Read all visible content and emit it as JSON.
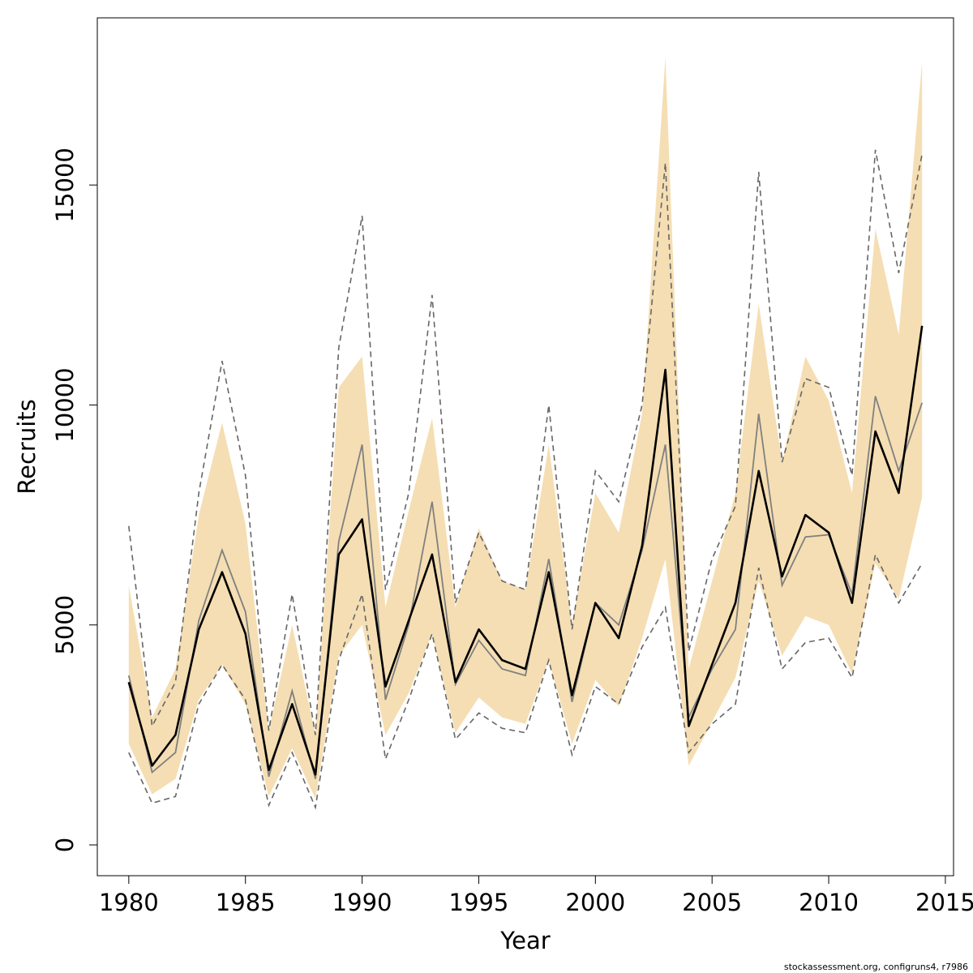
{
  "footer": "stockassessment.org, configruns4, r7986",
  "chart_data": {
    "type": "line",
    "title": "",
    "xlabel": "Year",
    "ylabel": "Recruits",
    "xlim": [
      1978.65,
      2015.35
    ],
    "ylim": [
      -700,
      18800
    ],
    "x_ticks": [
      1980,
      1985,
      1990,
      1995,
      2000,
      2005,
      2010,
      2015
    ],
    "y_ticks": [
      0,
      5000,
      10000,
      15000
    ],
    "grid": false,
    "legend": "none",
    "colors": {
      "band": "#f5deb3",
      "estimate": "#000000",
      "alt_estimate": "#808080",
      "alt_bounds": "#666666"
    },
    "x": [
      1980,
      1981,
      1982,
      1983,
      1984,
      1985,
      1986,
      1987,
      1988,
      1989,
      1990,
      1991,
      1992,
      1993,
      1994,
      1995,
      1996,
      1997,
      1998,
      1999,
      2000,
      2001,
      2002,
      2003,
      2004,
      2005,
      2006,
      2007,
      2008,
      2009,
      2010,
      2011,
      2012,
      2013,
      2014
    ],
    "series": [
      {
        "role": "estimate",
        "values": [
          3700,
          1800,
          2500,
          4900,
          6200,
          4800,
          1700,
          3200,
          1600,
          6600,
          7400,
          3600,
          5100,
          6600,
          3700,
          4900,
          4200,
          4000,
          6200,
          3400,
          5500,
          4700,
          6800,
          10800,
          2700,
          4100,
          5500,
          8500,
          6100,
          7500,
          7100,
          5500,
          9400,
          8000,
          11800
        ]
      },
      {
        "role": "band_lower",
        "values": [
          2300,
          1150,
          1500,
          3300,
          4100,
          3200,
          1100,
          2200,
          1050,
          4300,
          5000,
          2500,
          3450,
          4800,
          2550,
          3350,
          2900,
          2750,
          4200,
          2300,
          3750,
          3150,
          4700,
          6500,
          1800,
          2800,
          3800,
          6000,
          4300,
          5200,
          5000,
          3900,
          6400,
          5600,
          7900
        ]
      },
      {
        "role": "band_upper",
        "values": [
          5900,
          2900,
          4000,
          7500,
          9600,
          7300,
          2600,
          5000,
          2500,
          10400,
          11100,
          5400,
          7600,
          9700,
          5400,
          7200,
          6000,
          5800,
          9100,
          5000,
          8000,
          7100,
          9800,
          17900,
          4000,
          6000,
          8000,
          12300,
          8700,
          11100,
          10100,
          8000,
          14000,
          11600,
          17800
        ]
      },
      {
        "role": "alt_estimate",
        "values": [
          3850,
          1650,
          2100,
          5100,
          6700,
          5300,
          1550,
          3500,
          1500,
          6900,
          9100,
          3300,
          5000,
          7800,
          3650,
          4650,
          4000,
          3850,
          6500,
          3250,
          5500,
          5000,
          6700,
          9100,
          2900,
          4000,
          4900,
          9800,
          5900,
          7000,
          7050,
          5700,
          10200,
          8500,
          10050
        ]
      },
      {
        "role": "alt_lower",
        "values": [
          2100,
          950,
          1100,
          3200,
          4100,
          3300,
          900,
          2100,
          850,
          4200,
          5700,
          1950,
          3300,
          4800,
          2400,
          3000,
          2650,
          2550,
          4200,
          2050,
          3600,
          3200,
          4500,
          5400,
          2100,
          2750,
          3200,
          6300,
          4000,
          4600,
          4700,
          3800,
          6600,
          5500,
          6400
        ]
      },
      {
        "role": "alt_upper",
        "values": [
          7250,
          2700,
          3700,
          8000,
          11000,
          8400,
          2600,
          5700,
          2500,
          11300,
          14300,
          5800,
          8000,
          12500,
          5500,
          7100,
          6000,
          5800,
          10000,
          4900,
          8500,
          7800,
          10000,
          15500,
          4400,
          6500,
          7700,
          15300,
          8700,
          10600,
          10400,
          8400,
          15800,
          13000,
          15700
        ]
      }
    ]
  }
}
